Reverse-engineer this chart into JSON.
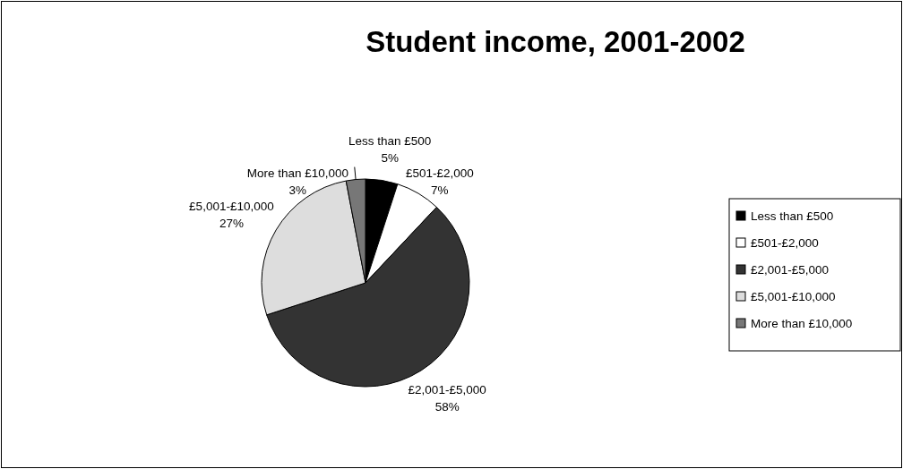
{
  "chart_data": {
    "type": "pie",
    "title": "Student income, 2001-2002",
    "categories": [
      "Less than £500",
      "£501-£2,000",
      "£2,001-£5,000",
      "£5,001-£10,000",
      "More than £10,000"
    ],
    "values": [
      5,
      7,
      58,
      27,
      3
    ],
    "colors": [
      "#000000",
      "#ffffff",
      "#333333",
      "#dddddd",
      "#777777"
    ],
    "value_labels": [
      "5%",
      "7%",
      "58%",
      "27%",
      "3%"
    ],
    "legend": "right"
  }
}
